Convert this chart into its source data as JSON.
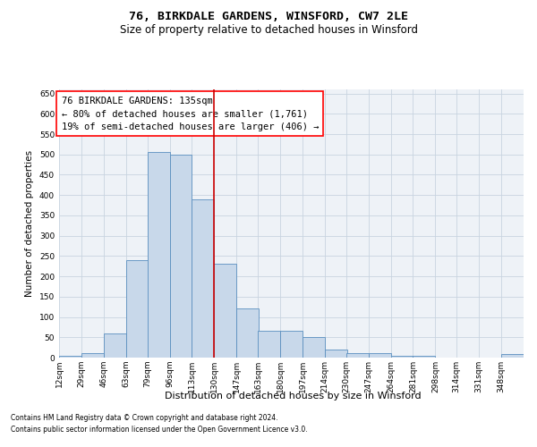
{
  "title": "76, BIRKDALE GARDENS, WINSFORD, CW7 2LE",
  "subtitle": "Size of property relative to detached houses in Winsford",
  "xlabel": "Distribution of detached houses by size in Winsford",
  "ylabel": "Number of detached properties",
  "footnote1": "Contains HM Land Registry data © Crown copyright and database right 2024.",
  "footnote2": "Contains public sector information licensed under the Open Government Licence v3.0.",
  "annotation_title": "76 BIRKDALE GARDENS: 135sqm",
  "annotation_line1": "← 80% of detached houses are smaller (1,761)",
  "annotation_line2": "19% of semi-detached houses are larger (406) →",
  "bin_labels": [
    "12sqm",
    "29sqm",
    "46sqm",
    "63sqm",
    "79sqm",
    "96sqm",
    "113sqm",
    "130sqm",
    "147sqm",
    "163sqm",
    "180sqm",
    "197sqm",
    "214sqm",
    "230sqm",
    "247sqm",
    "264sqm",
    "281sqm",
    "298sqm",
    "314sqm",
    "331sqm",
    "348sqm"
  ],
  "bin_edges": [
    12,
    29,
    46,
    63,
    79,
    96,
    113,
    130,
    147,
    163,
    180,
    197,
    214,
    230,
    247,
    264,
    281,
    298,
    314,
    331,
    348,
    365
  ],
  "bar_heights": [
    5,
    10,
    60,
    240,
    505,
    500,
    390,
    230,
    120,
    65,
    65,
    50,
    20,
    12,
    10,
    5,
    5,
    0,
    0,
    0,
    8
  ],
  "bar_color": "#c8d8ea",
  "bar_edge_color": "#5a8fbf",
  "grid_color": "#c8d4e0",
  "bg_color": "#eef2f7",
  "vline_color": "#cc0000",
  "vline_x": 130,
  "ylim": [
    0,
    660
  ],
  "yticks": [
    0,
    50,
    100,
    150,
    200,
    250,
    300,
    350,
    400,
    450,
    500,
    550,
    600,
    650
  ],
  "title_fontsize": 9.5,
  "subtitle_fontsize": 8.5,
  "xlabel_fontsize": 8.0,
  "ylabel_fontsize": 7.5,
  "tick_fontsize": 6.5,
  "annotation_fontsize": 7.5,
  "footnote_fontsize": 5.5
}
